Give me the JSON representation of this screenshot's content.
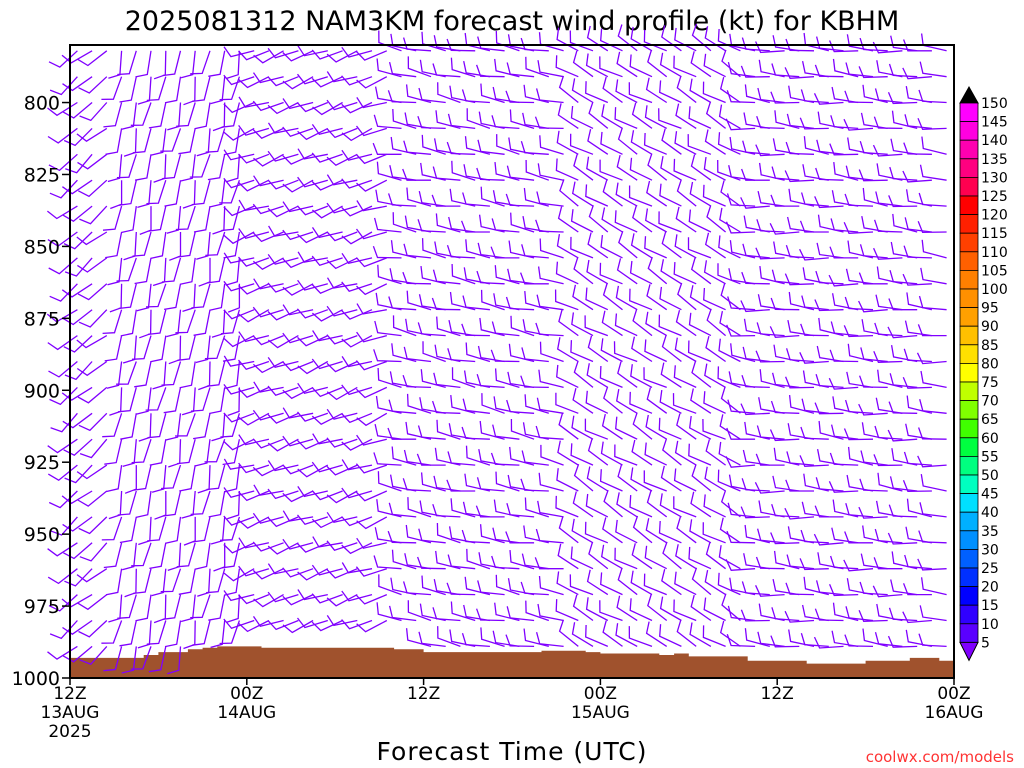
{
  "chart_data": {
    "type": "wind_barb_timeseries",
    "title": "2025081312 NAM3KM forecast wind profile (kt) for KBHM",
    "xlabel": "Forecast Time (UTC)",
    "ylabel": "",
    "credit": "coolwx.com/models",
    "x_ticks": [
      {
        "hour": 0,
        "label1": "12Z",
        "label2": "13AUG",
        "label3": "2025"
      },
      {
        "hour": 12,
        "label1": "00Z",
        "label2": "14AUG",
        "label3": ""
      },
      {
        "hour": 24,
        "label1": "12Z",
        "label2": "",
        "label3": ""
      },
      {
        "hour": 36,
        "label1": "00Z",
        "label2": "15AUG",
        "label3": ""
      },
      {
        "hour": 48,
        "label1": "12Z",
        "label2": "",
        "label3": ""
      },
      {
        "hour": 60,
        "label1": "00Z",
        "label2": "16AUG",
        "label3": ""
      }
    ],
    "x_range_hours": [
      0,
      60
    ],
    "y_ticks": [
      800,
      825,
      850,
      875,
      900,
      925,
      950,
      975,
      1000
    ],
    "y_range_hPa": [
      780,
      1000
    ],
    "levels_hPa": [
      782,
      791,
      800,
      809,
      818,
      827,
      836,
      845,
      854,
      863,
      872,
      881,
      890,
      899,
      908,
      917,
      926,
      935,
      944,
      953,
      962,
      971,
      980,
      989
    ],
    "barb_color": "#8000ff",
    "terrain_color": "#a0522d",
    "terrain_hPa": [
      [
        0,
        993
      ],
      [
        2,
        993
      ],
      [
        4,
        993
      ],
      [
        5,
        992
      ],
      [
        6,
        991
      ],
      [
        8,
        990
      ],
      [
        9,
        989.5
      ],
      [
        10,
        989
      ],
      [
        12,
        989
      ],
      [
        13,
        989.5
      ],
      [
        14,
        989.5
      ],
      [
        16,
        989.5
      ],
      [
        18,
        989.5
      ],
      [
        20,
        989.5
      ],
      [
        22,
        990
      ],
      [
        24,
        991
      ],
      [
        26,
        991
      ],
      [
        28,
        991
      ],
      [
        30,
        991
      ],
      [
        32,
        990.5
      ],
      [
        34,
        990.5
      ],
      [
        35,
        991
      ],
      [
        36,
        991.5
      ],
      [
        38,
        991.5
      ],
      [
        40,
        992
      ],
      [
        41,
        991.5
      ],
      [
        42,
        992.5
      ],
      [
        44,
        992.5
      ],
      [
        46,
        994
      ],
      [
        48,
        994
      ],
      [
        50,
        995
      ],
      [
        52,
        995
      ],
      [
        54,
        994
      ],
      [
        56,
        994
      ],
      [
        57,
        993
      ],
      [
        58,
        993
      ],
      [
        59,
        994
      ],
      [
        60,
        994
      ]
    ],
    "wind_profile_regimes": [
      {
        "hours": [
          0,
          3
        ],
        "direction_deg": 230,
        "speed_kt": 10
      },
      {
        "hours": [
          3,
          12
        ],
        "direction_deg": 190,
        "speed_kt": 5
      },
      {
        "hours": [
          12,
          22
        ],
        "direction_deg": 250,
        "speed_kt": 10
      },
      {
        "hours": [
          22,
          34
        ],
        "direction_deg": 280,
        "speed_kt": 10
      },
      {
        "hours": [
          34,
          46
        ],
        "direction_deg": 300,
        "speed_kt": 10
      },
      {
        "hours": [
          46,
          60
        ],
        "direction_deg": 275,
        "speed_kt": 10
      }
    ],
    "colorbar": {
      "labels": [
        5,
        10,
        15,
        20,
        25,
        30,
        35,
        40,
        45,
        50,
        55,
        60,
        65,
        70,
        75,
        80,
        85,
        90,
        95,
        100,
        105,
        110,
        115,
        120,
        125,
        130,
        135,
        140,
        145,
        150
      ],
      "colors": [
        "#8000ff",
        "#5a00ff",
        "#3000ff",
        "#0000ff",
        "#0030ff",
        "#0060ff",
        "#0090ff",
        "#00b0ff",
        "#00e0ff",
        "#00ffc0",
        "#00ff80",
        "#00ff40",
        "#40ff00",
        "#80ff00",
        "#c0ff00",
        "#ffff00",
        "#ffe000",
        "#ffc000",
        "#ffa000",
        "#ff9000",
        "#ff8000",
        "#ff6000",
        "#ff4000",
        "#ff2000",
        "#ff0000",
        "#ff0050",
        "#ff0080",
        "#ff00b0",
        "#ff00e0",
        "#ff00ff"
      ],
      "top_arrow_color": "#000000"
    }
  }
}
